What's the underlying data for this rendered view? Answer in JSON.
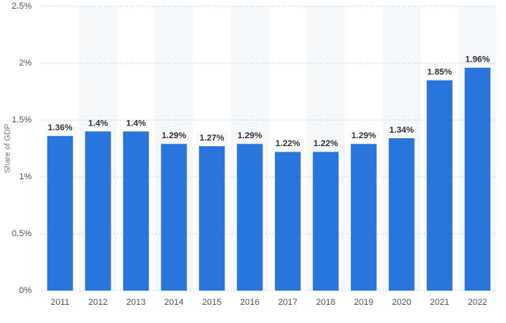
{
  "chart_data": {
    "type": "bar",
    "y_label": "Share of GDP",
    "categories": [
      "2011",
      "2012",
      "2013",
      "2014",
      "2015",
      "2016",
      "2017",
      "2018",
      "2019",
      "2020",
      "2021",
      "2022"
    ],
    "values": [
      1.36,
      1.4,
      1.4,
      1.29,
      1.27,
      1.29,
      1.22,
      1.22,
      1.29,
      1.34,
      1.85,
      1.96
    ],
    "value_labels": [
      "1.36%",
      "1.4%",
      "1.4%",
      "1.29%",
      "1.27%",
      "1.29%",
      "1.22%",
      "1.22%",
      "1.29%",
      "1.34%",
      "1.85%",
      "1.96%"
    ],
    "color": "#2876dd",
    "ylim": [
      0,
      2.5
    ],
    "yticks": [
      {
        "value": 0,
        "label": "0%"
      },
      {
        "value": 0.5,
        "label": "0.5%"
      },
      {
        "value": 1,
        "label": "1%"
      },
      {
        "value": 1.5,
        "label": "1.5%"
      },
      {
        "value": 2,
        "label": "2%"
      },
      {
        "value": 2.5,
        "label": "2.5%"
      }
    ],
    "grid": true
  }
}
